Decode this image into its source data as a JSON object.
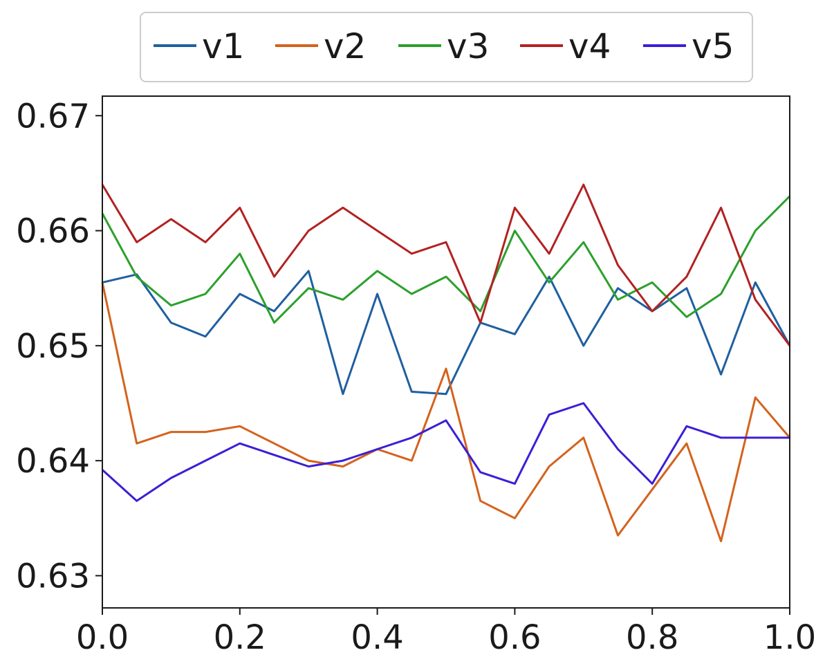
{
  "chart_data": {
    "type": "line",
    "title": "",
    "xlabel": "",
    "ylabel": "",
    "xlim": [
      0.0,
      1.0
    ],
    "ylim": [
      0.6272,
      0.6717
    ],
    "grid": false,
    "legend_position": "top-center",
    "x_ticks": [
      0.0,
      0.2,
      0.4,
      0.6,
      0.8,
      1.0
    ],
    "x_tick_labels": [
      "0.0",
      "0.2",
      "0.4",
      "0.6",
      "0.8",
      "1.0"
    ],
    "y_ticks": [
      0.63,
      0.64,
      0.65,
      0.66,
      0.67
    ],
    "y_tick_labels": [
      "0.63",
      "0.64",
      "0.65",
      "0.66",
      "0.67"
    ],
    "x": [
      0.0,
      0.05,
      0.1,
      0.15,
      0.2,
      0.25,
      0.3,
      0.35,
      0.4,
      0.45,
      0.5,
      0.55,
      0.6,
      0.65,
      0.7,
      0.75,
      0.8,
      0.85,
      0.9,
      0.95,
      1.0
    ],
    "series": [
      {
        "name": "v1",
        "color": "#1f5fa0",
        "values": [
          0.6555,
          0.6562,
          0.652,
          0.6508,
          0.6545,
          0.653,
          0.6565,
          0.6458,
          0.6545,
          0.646,
          0.6458,
          0.652,
          0.651,
          0.656,
          0.65,
          0.655,
          0.653,
          0.655,
          0.6475,
          0.6555,
          0.65
        ]
      },
      {
        "name": "v2",
        "color": "#d4621c",
        "values": [
          0.6555,
          0.6415,
          0.6425,
          0.6425,
          0.643,
          0.6415,
          0.64,
          0.6395,
          0.641,
          0.64,
          0.648,
          0.6365,
          0.635,
          0.6395,
          0.642,
          0.6335,
          0.6375,
          0.6415,
          0.633,
          0.6455,
          0.642
        ]
      },
      {
        "name": "v3",
        "color": "#2ca02c",
        "values": [
          0.6615,
          0.656,
          0.6535,
          0.6545,
          0.658,
          0.652,
          0.655,
          0.654,
          0.6565,
          0.6545,
          0.656,
          0.653,
          0.66,
          0.6555,
          0.659,
          0.654,
          0.6555,
          0.6525,
          0.6545,
          0.66,
          0.663
        ]
      },
      {
        "name": "v4",
        "color": "#b22222",
        "values": [
          0.664,
          0.659,
          0.661,
          0.659,
          0.662,
          0.656,
          0.66,
          0.662,
          0.66,
          0.658,
          0.659,
          0.652,
          0.662,
          0.658,
          0.664,
          0.657,
          0.653,
          0.656,
          0.662,
          0.654,
          0.65
        ]
      },
      {
        "name": "v5",
        "color": "#3a1fd6",
        "values": [
          0.6392,
          0.6365,
          0.6385,
          0.64,
          0.6415,
          0.6405,
          0.6395,
          0.64,
          0.641,
          0.642,
          0.6435,
          0.639,
          0.638,
          0.644,
          0.645,
          0.641,
          0.638,
          0.643,
          0.642,
          0.642,
          0.642
        ]
      }
    ]
  }
}
